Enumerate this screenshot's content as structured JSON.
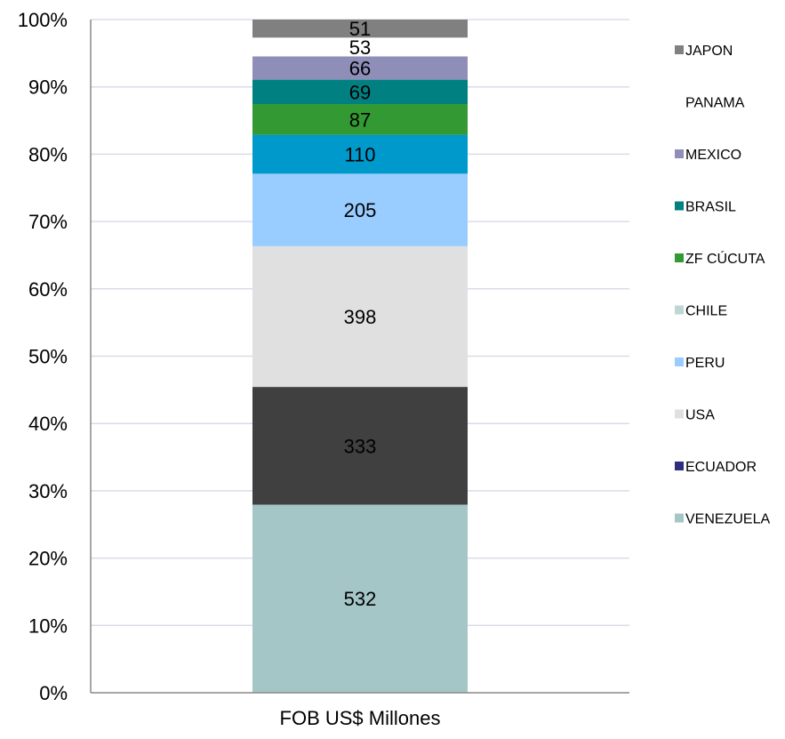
{
  "chart_data": {
    "type": "bar",
    "stacking": "percent",
    "categories": [
      "FOB US$ Millones"
    ],
    "series": [
      {
        "name": "VENEZUELA",
        "values": [
          532
        ],
        "color": "#a5c6c6"
      },
      {
        "name": "ECUADOR",
        "values": [
          333
        ],
        "color": "#404040"
      },
      {
        "name": "USA",
        "values": [
          398
        ],
        "color": "#e0e0e0"
      },
      {
        "name": "PERU",
        "values": [
          205
        ],
        "color": "#99ccff"
      },
      {
        "name": "CHILE",
        "values": [
          0
        ],
        "color": "#bfd7d4"
      },
      {
        "name": "ZF CÚCUTA",
        "values": [
          110
        ],
        "color": "#0099cc"
      },
      {
        "name": "BRASIL",
        "values": [
          87
        ],
        "color": "#339933"
      },
      {
        "name": "MEXICO",
        "values": [
          69
        ],
        "color": "#008080"
      },
      {
        "name": "PANAMA",
        "values": [
          66
        ],
        "color": "#8e8eb9"
      },
      {
        "name": "JAPON",
        "values": [
          53
        ],
        "color": "#ffffff"
      },
      {
        "name": "",
        "values": [
          51
        ],
        "color": "#808080"
      }
    ],
    "legend": {
      "position": "right",
      "entries": [
        {
          "label": "JAPON",
          "color": "#808080"
        },
        {
          "label": "PANAMA",
          "color": "#ffffff"
        },
        {
          "label": "MEXICO",
          "color": "#8e8eb9"
        },
        {
          "label": "BRASIL",
          "color": "#008080"
        },
        {
          "label": "ZF CÚCUTA",
          "color": "#339933"
        },
        {
          "label": "CHILE",
          "color": "#bfd7d4"
        },
        {
          "label": "PERU",
          "color": "#99ccff"
        },
        {
          "label": "USA",
          "color": "#e0e0e0"
        },
        {
          "label": "ECUADOR",
          "color": "#2e2e80"
        },
        {
          "label": "VENEZUELA",
          "color": "#a5c6c6"
        }
      ]
    },
    "y_ticks": [
      "0%",
      "10%",
      "20%",
      "30%",
      "40%",
      "50%",
      "60%",
      "70%",
      "80%",
      "90%",
      "100%"
    ],
    "ylim": [
      0,
      100
    ],
    "grid": true
  }
}
